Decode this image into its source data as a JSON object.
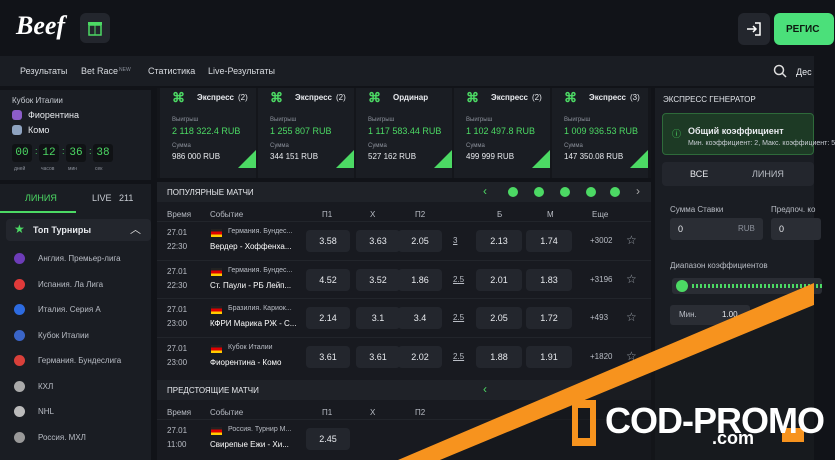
{
  "header": {
    "logo": "Beef",
    "register": "РЕГИС"
  },
  "nav": {
    "items": [
      "Результаты",
      "Bet Race",
      "Статистика",
      "Live-Результаты"
    ],
    "badge": "NEW",
    "search": "Дес"
  },
  "match": {
    "tournament": "Кубок Италии",
    "teams": [
      "Фиорентина",
      "Комо"
    ],
    "timer": [
      "00",
      "12",
      "36",
      "38"
    ],
    "timer_labels": [
      "дней",
      "часов",
      "мин",
      "сек"
    ]
  },
  "tabs": {
    "line": "ЛИНИЯ",
    "live": "LIVE",
    "live_count": "211"
  },
  "top": {
    "title": "Топ Турниры",
    "items": [
      "Англия. Премьер-лига",
      "Испания. Ла Лига",
      "Италия. Серия А",
      "Кубок Италии",
      "Германия. Бундеслига",
      "КХЛ",
      "NHL",
      "Россия. МХЛ"
    ]
  },
  "cards": [
    {
      "title": "Экспресс",
      "count": "(2)",
      "win_label": "Выигрыш",
      "win": "2 118 322.4 RUB",
      "sum_label": "Сумма",
      "sum": "986 000 RUB"
    },
    {
      "title": "Экспресс",
      "count": "(2)",
      "win_label": "Выигрыш",
      "win": "1 255 807 RUB",
      "sum_label": "Сумма",
      "sum": "344 151 RUB"
    },
    {
      "title": "Ординар",
      "count": "",
      "win_label": "Выигрыш",
      "win": "1 117 583.44 RUB",
      "sum_label": "Сумма",
      "sum": "527 162 RUB"
    },
    {
      "title": "Экспресс",
      "count": "(2)",
      "win_label": "Выигрыш",
      "win": "1 102 497.8 RUB",
      "sum_label": "Сумма",
      "sum": "499 999 RUB"
    },
    {
      "title": "Экспресс",
      "count": "(3)",
      "win_label": "Выигрыш",
      "win": "1 009 936.53 RUB",
      "sum_label": "Сумма",
      "sum": "147 350.08 RUB"
    }
  ],
  "popular": {
    "title": "ПОПУЛЯРНЫЕ МАТЧИ",
    "columns": [
      "Время",
      "Событие",
      "П1",
      "X",
      "П2",
      "Б",
      "М",
      "Еще"
    ],
    "rows": [
      [
        "27.01",
        "22:30",
        "Германия. Бундес...",
        "Вердер - Хоффенха...",
        "3.58",
        "3.63",
        "2.05",
        "3",
        "2.13",
        "1.74",
        "+3002"
      ],
      [
        "27.01",
        "22:30",
        "Германия. Бундес...",
        "Ст. Паули - РБ Лейп...",
        "4.52",
        "3.52",
        "1.86",
        "2.5",
        "2.01",
        "1.83",
        "+3196"
      ],
      [
        "27.01",
        "23:00",
        "Бразилия. Кариок...",
        "КФРИ Марика РЖ - С...",
        "2.14",
        "3.1",
        "3.4",
        "2.5",
        "2.05",
        "1.72",
        "+493"
      ],
      [
        "27.01",
        "23:00",
        "Кубок Италии",
        "Фиорентина - Комо",
        "3.61",
        "3.61",
        "2.02",
        "2.5",
        "1.88",
        "1.91",
        "+1820"
      ]
    ]
  },
  "upcoming": {
    "title": "ПРЕДСТОЯЩИЕ МАТЧИ",
    "columns": [
      "Время",
      "Событие",
      "П1",
      "X",
      "П2"
    ],
    "rows": [
      [
        "27.01",
        "11:00",
        "Россия. Турнир М...",
        "Свирепые Ежи - Хи...",
        "2.45"
      ]
    ]
  },
  "generator": {
    "title": "ЭКСПРЕСС ГЕНЕРАТОР",
    "coef_title": "Общий коэффициент",
    "coef_text": "Мин. коэффициент: 2, Макс. коэффициент: 5",
    "tabs": [
      "ВСЕ",
      "ЛИНИЯ"
    ],
    "stake_label": "Сумма Ставки",
    "stake": "0",
    "currency": "RUB",
    "pref_label": "Предпоч. ко",
    "pref": "0",
    "range_label": "Диапазон коэффициентов",
    "min_label": "Мин.",
    "min": "1.00"
  },
  "watermark": {
    "brand": "COD-PROMO",
    "domain": ".com"
  }
}
